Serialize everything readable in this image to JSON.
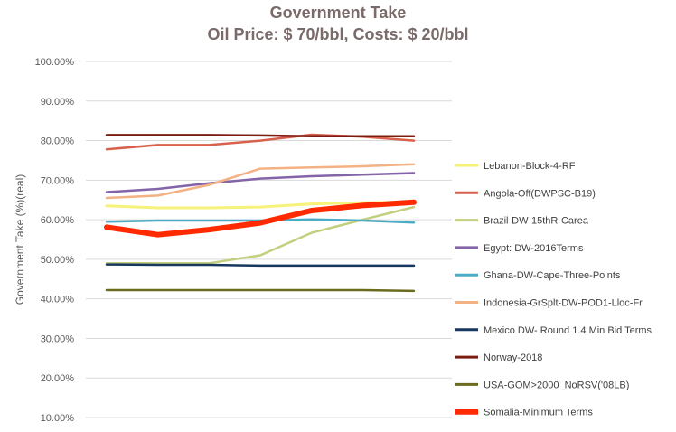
{
  "chart_data": {
    "type": "line",
    "title": "Government Take",
    "subtitle": "Oil Price: $ 70/bbl, Costs: $ 20/bbl",
    "xlabel": "",
    "ylabel": "Government Take (%)(real)",
    "ylim": [
      0.1,
      1.0
    ],
    "yticks": [
      "100.00%",
      "90.00%",
      "80.00%",
      "70.00%",
      "60.00%",
      "50.00%",
      "40.00%",
      "30.00%",
      "20.00%",
      "10.00%"
    ],
    "ytick_values": [
      1.0,
      0.9,
      0.8,
      0.7,
      0.6,
      0.5,
      0.4,
      0.3,
      0.2,
      0.1
    ],
    "grid": true,
    "legend_position": "right",
    "x": [
      0,
      1,
      2,
      3,
      4,
      5,
      6
    ],
    "series": [
      {
        "name": "Lebanon-Block-4-RF",
        "color": "#f7f27a",
        "width": 3,
        "values": [
          0.635,
          0.63,
          0.63,
          0.632,
          0.64,
          0.643,
          0.645
        ]
      },
      {
        "name": "Angola-Off(DWPSC-B19)",
        "color": "#d9604c",
        "width": 2.5,
        "values": [
          0.778,
          0.789,
          0.789,
          0.8,
          0.815,
          0.81,
          0.8
        ]
      },
      {
        "name": "Brazil-DW-15thR-Carea",
        "color": "#c3cf7e",
        "width": 2.5,
        "values": [
          0.49,
          0.49,
          0.49,
          0.51,
          0.567,
          0.6,
          0.632
        ]
      },
      {
        "name": "Egypt: DW-2016Terms",
        "color": "#8464a8",
        "width": 2.5,
        "values": [
          0.67,
          0.678,
          0.692,
          0.704,
          0.71,
          0.714,
          0.718
        ]
      },
      {
        "name": "Ghana-DW-Cape-Three-Points",
        "color": "#4bacc6",
        "width": 2.5,
        "values": [
          0.595,
          0.598,
          0.598,
          0.598,
          0.601,
          0.598,
          0.593
        ]
      },
      {
        "name": "Indonesia-GrSplt-DW-POD1-Lloc-Fr",
        "color": "#f4b183",
        "width": 2.5,
        "values": [
          0.655,
          0.661,
          0.688,
          0.729,
          0.732,
          0.735,
          0.74
        ]
      },
      {
        "name": "Mexico DW- Round 1.4 Min Bid Terms",
        "color": "#17375e",
        "width": 2.5,
        "values": [
          0.487,
          0.486,
          0.486,
          0.484,
          0.484,
          0.484,
          0.484
        ]
      },
      {
        "name": "Norway-2018",
        "color": "#7b1c13",
        "width": 2.5,
        "values": [
          0.814,
          0.814,
          0.814,
          0.813,
          0.811,
          0.811,
          0.811
        ]
      },
      {
        "name": "USA-GOM>2000_NoRSV('08LB)",
        "color": "#6b6b1e",
        "width": 2.5,
        "values": [
          0.422,
          0.422,
          0.422,
          0.422,
          0.422,
          0.422,
          0.42
        ]
      },
      {
        "name": "Somalia-Minimum Terms",
        "color": "#ff2a00",
        "width": 6,
        "values": [
          0.581,
          0.562,
          0.575,
          0.592,
          0.623,
          0.636,
          0.644
        ]
      }
    ]
  }
}
